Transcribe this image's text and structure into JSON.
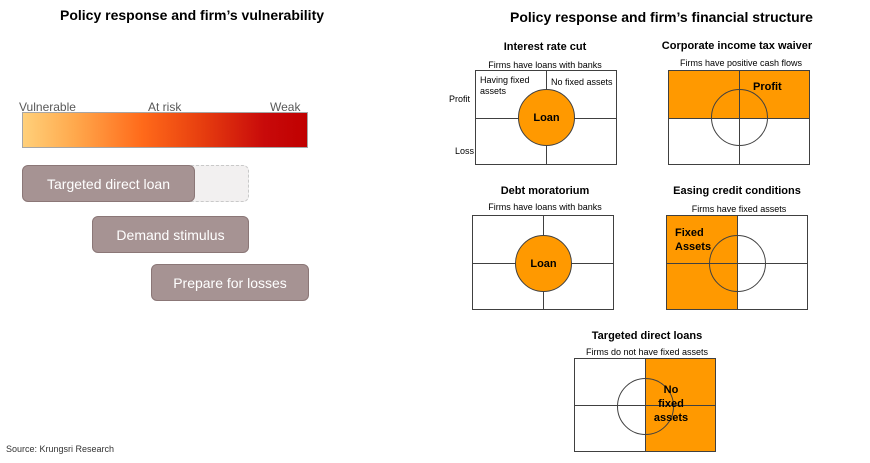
{
  "left": {
    "title": "Policy response and firm’s vulnerability",
    "scale": [
      "Vulnerable",
      "At risk",
      "Weak"
    ],
    "policies": [
      "Targeted direct loan",
      "Demand stimulus",
      "Prepare for losses"
    ]
  },
  "right": {
    "title": "Policy response and firm’s financial structure",
    "panels": {
      "interest_rate_cut": {
        "title": "Interest rate cut",
        "subtitle": "Firms have loans with banks",
        "quad_having": "Having fixed assets",
        "quad_no_fixed": "No fixed assets",
        "row_profit": "Profit",
        "row_loss": "Loss",
        "circle": "Loan"
      },
      "tax_waiver": {
        "title": "Corporate income tax waiver",
        "subtitle": "Firms have positive cash flows",
        "label": "Profit"
      },
      "debt_moratorium": {
        "title": "Debt moratorium",
        "subtitle": "Firms have loans with banks",
        "circle": "Loan"
      },
      "easing_credit": {
        "title": "Easing credit conditions",
        "subtitle": "Firms have fixed assets",
        "label_line1": "Fixed",
        "label_line2": "Assets"
      },
      "targeted_loans": {
        "title": "Targeted direct loans",
        "subtitle": "Firms do not have fixed assets",
        "label_line1": "No",
        "label_line2": "fixed",
        "label_line3": "assets"
      }
    },
    "fill_color": "#ff9900"
  },
  "source": "Source: Krungsri Research"
}
